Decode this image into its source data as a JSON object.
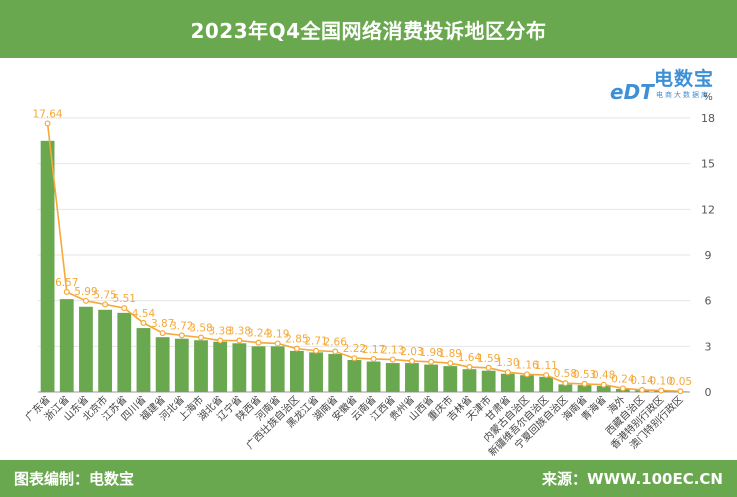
{
  "title": "2023年Q4全国网络消费投诉地区分布",
  "footer": {
    "left": "图表编制：电数宝",
    "right": "来源：WWW.100EC.CN"
  },
  "logo": {
    "name": "电数宝",
    "subtitle": "电商大数据库",
    "mark": "eDT"
  },
  "colors": {
    "bar": "#6aa84f",
    "line": "#f5a93a",
    "header": "#6aa84f",
    "logo": "#3d8fd6"
  },
  "chart_data": {
    "type": "bar",
    "unit": "%",
    "ylim": [
      0,
      18
    ],
    "yticks": [
      0,
      3,
      6,
      9,
      12,
      15,
      18
    ],
    "categories": [
      "广东省",
      "浙江省",
      "山东省",
      "北京市",
      "江苏省",
      "四川省",
      "福建省",
      "河北省",
      "上海市",
      "湖北省",
      "辽宁省",
      "陕西省",
      "河南省",
      "广西壮族自治区",
      "黑龙江省",
      "湖南省",
      "安徽省",
      "云南省",
      "江西省",
      "贵州省",
      "山西省",
      "重庆市",
      "吉林省",
      "天津市",
      "甘肃省",
      "内蒙古自治区",
      "新疆维吾尔自治区",
      "宁夏回族自治区",
      "海南省",
      "青海省",
      "海外",
      "西藏自治区",
      "香港特别行政区",
      "澳门特别行政区"
    ],
    "values": [
      16.5,
      6.1,
      5.6,
      5.4,
      5.2,
      4.2,
      3.6,
      3.5,
      3.4,
      3.3,
      3.2,
      3.0,
      3.0,
      2.7,
      2.6,
      2.5,
      2.1,
      2.0,
      1.9,
      1.9,
      1.8,
      1.7,
      1.5,
      1.4,
      1.2,
      1.1,
      1.0,
      0.5,
      0.45,
      0.4,
      0.2,
      0.12,
      0.08,
      0.04
    ],
    "line_values": [
      17.64,
      6.57,
      5.99,
      5.75,
      5.51,
      4.54,
      3.87,
      3.72,
      3.58,
      3.38,
      3.38,
      3.24,
      3.19,
      2.85,
      2.71,
      2.66,
      2.22,
      2.17,
      2.13,
      2.03,
      1.98,
      1.89,
      1.64,
      1.59,
      1.3,
      1.16,
      1.11,
      0.58,
      0.53,
      0.48,
      0.24,
      0.14,
      0.1,
      0.05
    ],
    "line_labels": [
      "17.64",
      "6.57",
      "5.99",
      "5.75",
      "5.51",
      "4.54",
      "3.87",
      "3.72",
      "3.58",
      "3.38",
      "3.38",
      "3.24",
      "3.19",
      "2.85",
      "2.71",
      "2.66",
      "2.22",
      "2.17",
      "2.13",
      "2.03",
      "1.98",
      "1.89",
      "1.64",
      "1.59",
      "1.30",
      "1.16",
      "1.11",
      "0.58",
      "0.53",
      "0.48",
      "0.24",
      "0.14",
      "0.10",
      "0.05"
    ],
    "grid": true
  }
}
